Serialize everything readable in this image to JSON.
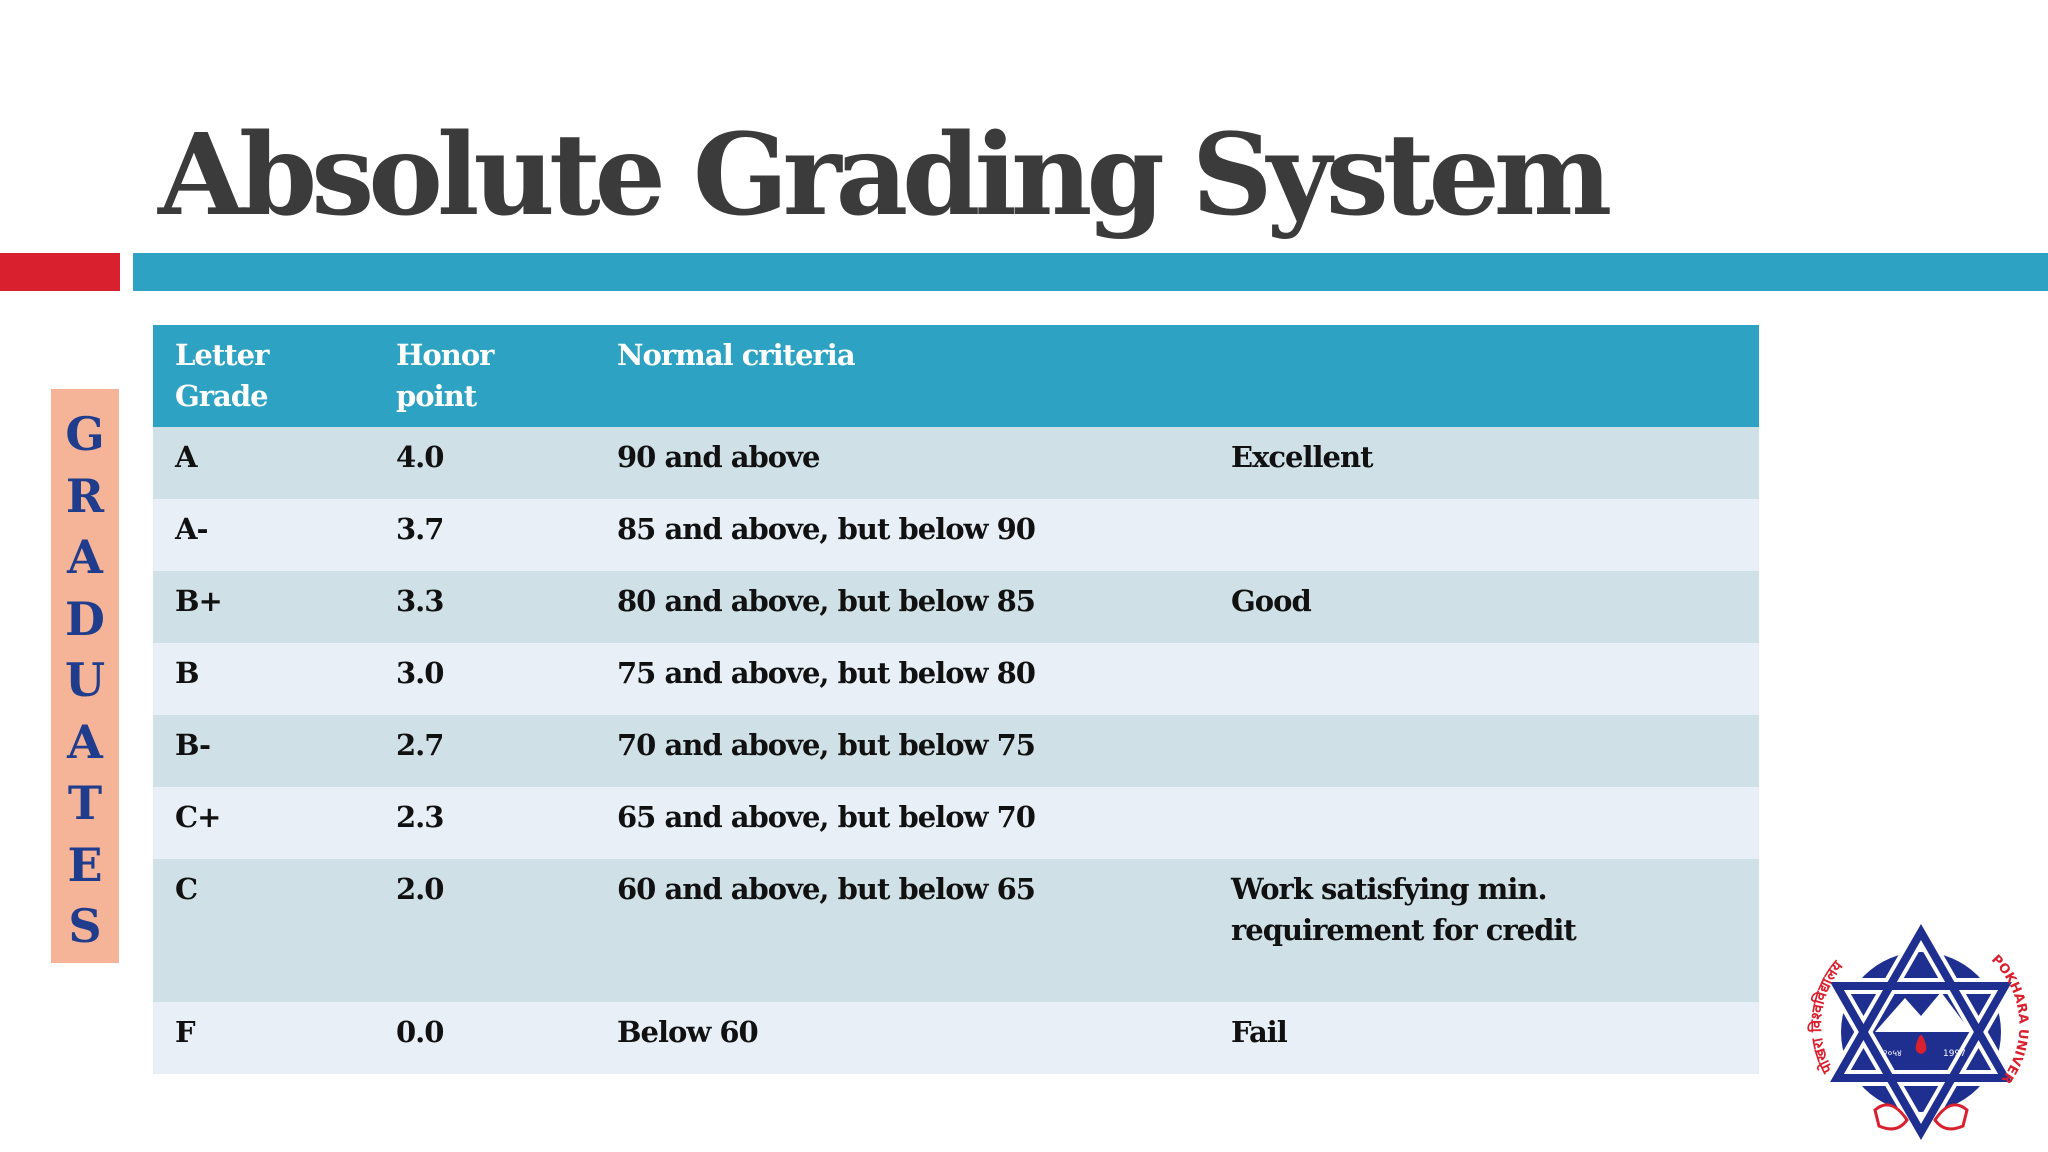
{
  "slide": {
    "title": "Absolute Grading System",
    "side_label": [
      "G",
      "R",
      "A",
      "D",
      "U",
      "A",
      "T",
      "E",
      "S"
    ]
  },
  "table": {
    "headers": [
      "Letter Grade",
      "Honor point",
      "Normal criteria",
      ""
    ],
    "rows": [
      [
        "A",
        "4.0",
        "90 and above",
        "Excellent"
      ],
      [
        "A-",
        "3.7",
        "85 and above, but below 90",
        ""
      ],
      [
        "B+",
        "3.3",
        "80 and above, but below 85",
        "Good"
      ],
      [
        "B",
        "3.0",
        "75 and above, but below 80",
        ""
      ],
      [
        "B-",
        "2.7",
        "70 and above, but below 75",
        ""
      ],
      [
        "C+",
        "2.3",
        "65 and above, but below 70",
        ""
      ],
      [
        "C",
        "2.0",
        "60 and above, but below 65",
        "Work satisfying min. requirement for credit"
      ],
      [
        "F",
        "0.0",
        "Below 60",
        "Fail"
      ]
    ]
  },
  "logo": {
    "text_left": "पोखरा विश्वविद्यालय",
    "text_right": "POKHARA UNIVERSITY",
    "year_left": "२०५४",
    "year_right": "1997"
  },
  "colors": {
    "accent_teal": "#2ea2c2",
    "accent_red": "#d9202e",
    "side_bg": "#f5b497",
    "side_text": "#1f3d8c"
  }
}
